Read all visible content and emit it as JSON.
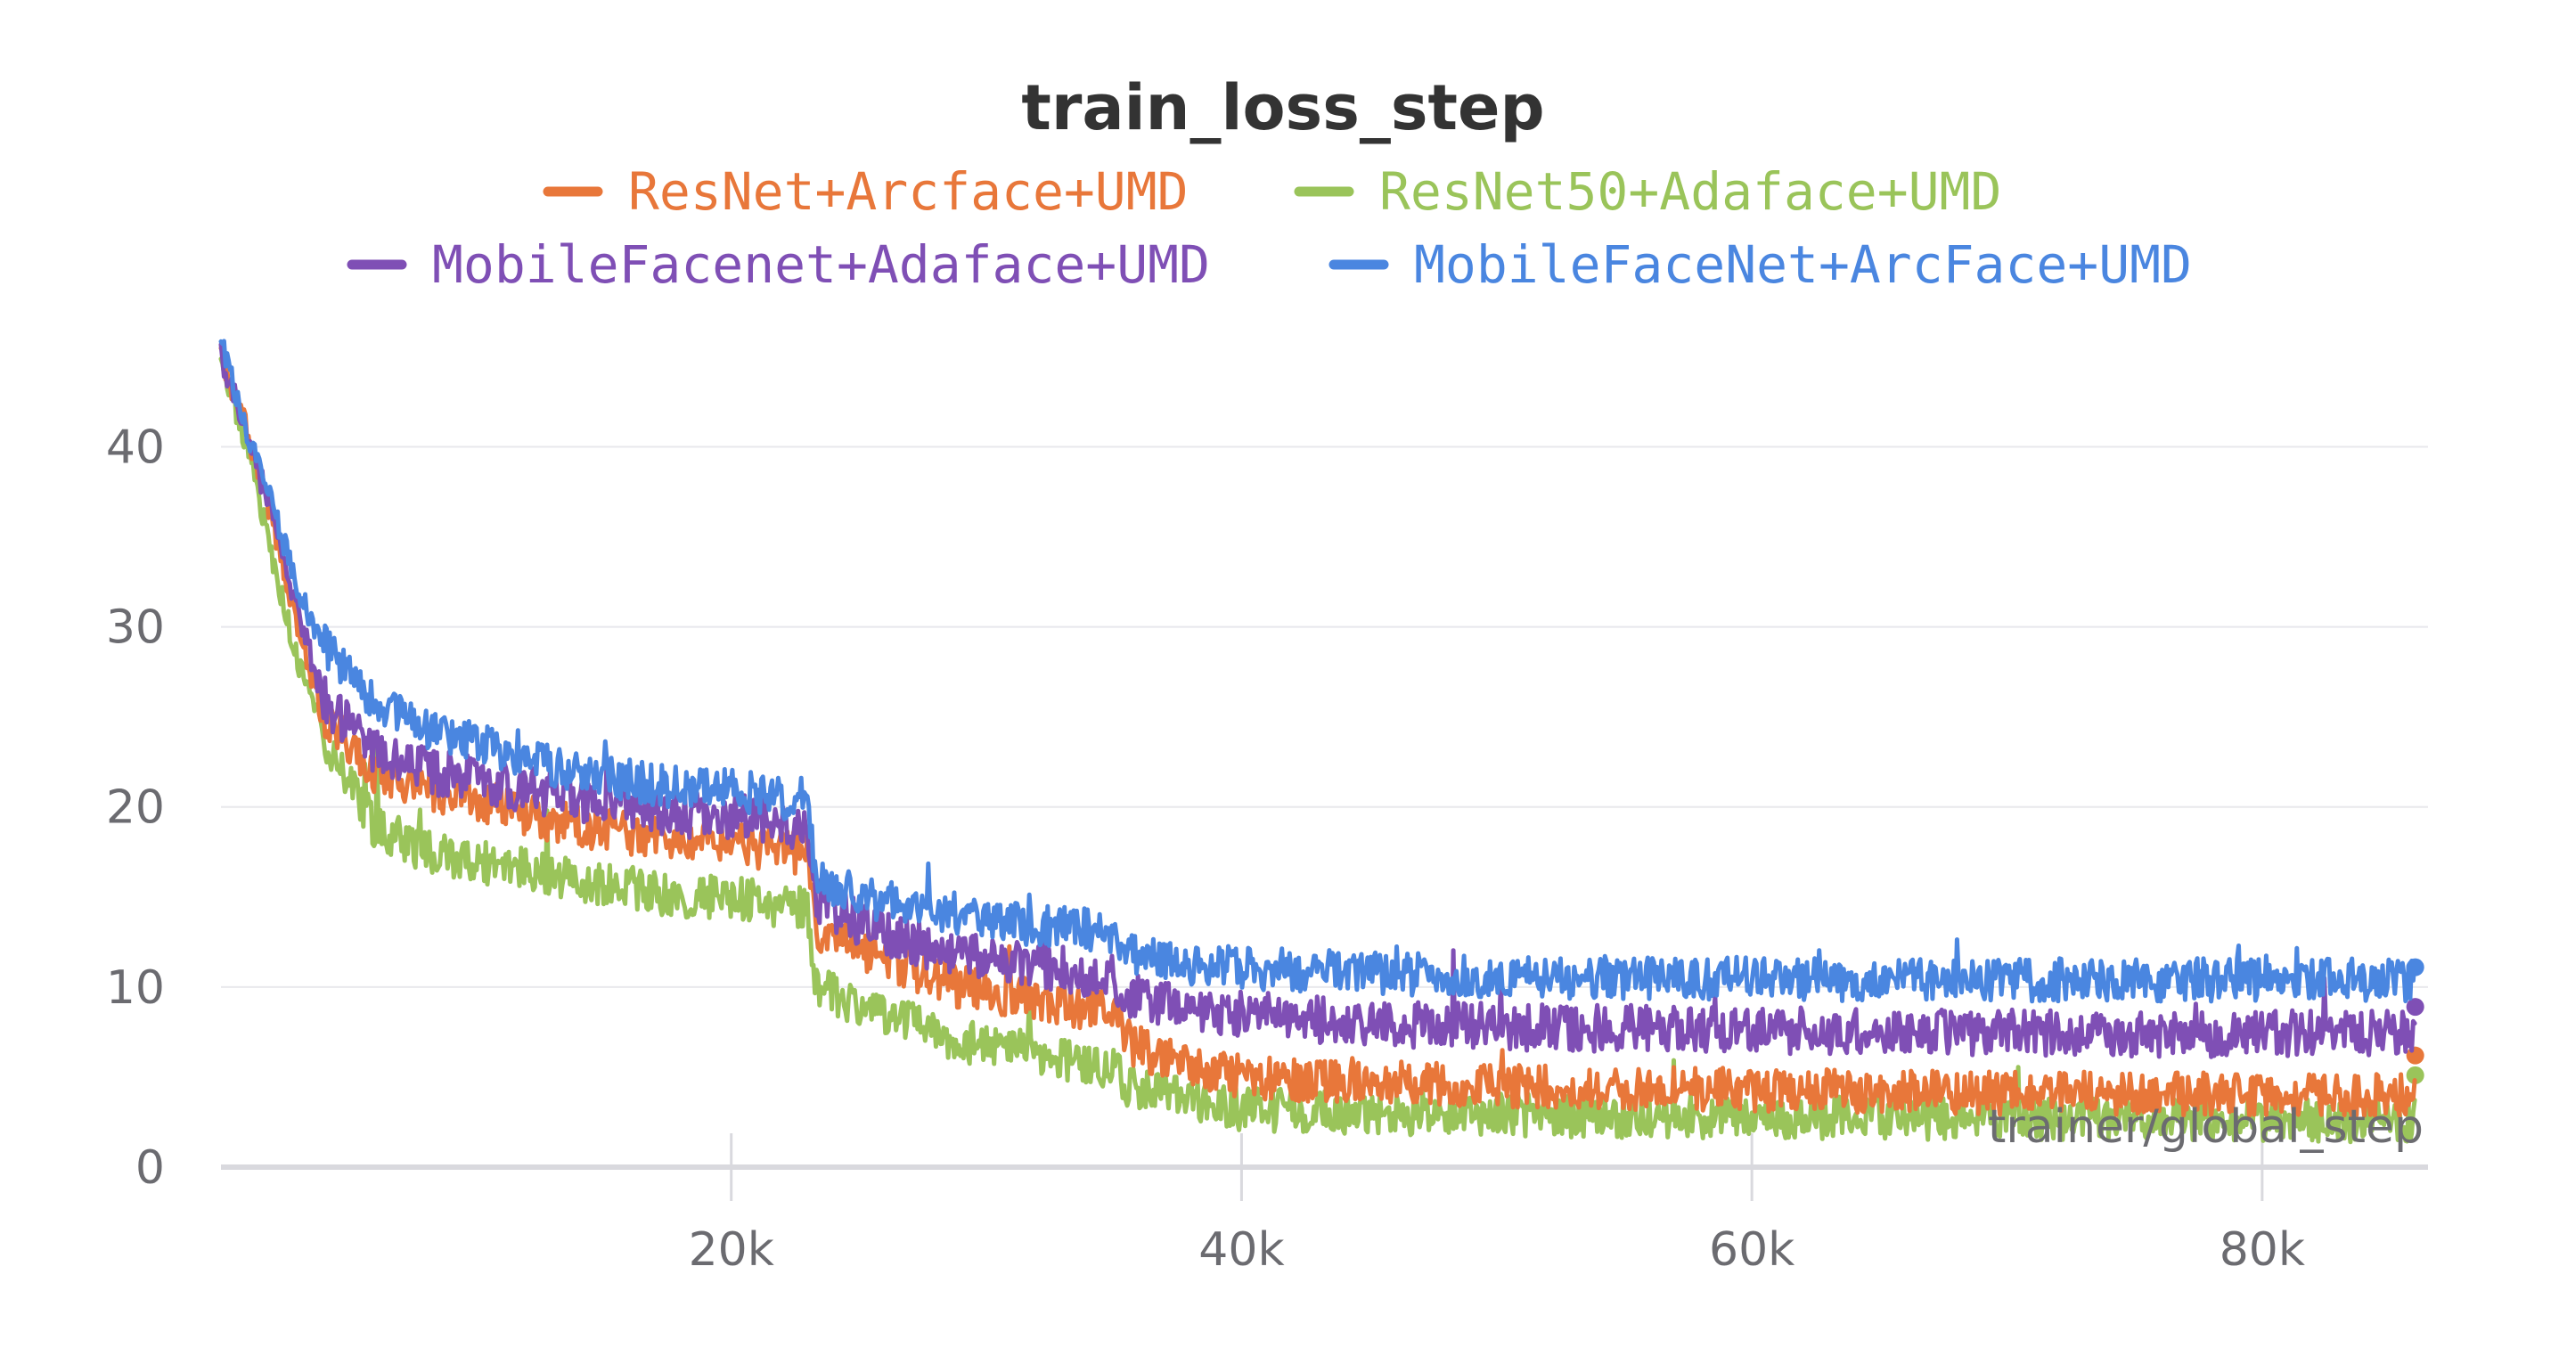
{
  "chart_data": {
    "type": "line",
    "title": "train_loss_step",
    "xlabel": "trainer/global_step",
    "ylabel": "",
    "xlim": [
      0,
      86500
    ],
    "ylim": [
      0,
      47
    ],
    "x_ticks": [
      20000,
      40000,
      60000,
      80000
    ],
    "x_tick_labels": [
      "20k",
      "40k",
      "60k",
      "80k"
    ],
    "y_ticks": [
      0,
      10,
      20,
      30,
      40
    ],
    "y_tick_labels": [
      "0",
      "10",
      "20",
      "30",
      "40"
    ],
    "grid": true,
    "legend_position": "top-center",
    "series": [
      {
        "name": "ResNet+Arcface+UMD",
        "color": "#e8773a",
        "points": [
          [
            0,
            45
          ],
          [
            1000,
            41
          ],
          [
            2000,
            36
          ],
          [
            3000,
            30
          ],
          [
            4000,
            25
          ],
          [
            6000,
            22
          ],
          [
            8000,
            21
          ],
          [
            10000,
            20.5
          ],
          [
            12000,
            19.5
          ],
          [
            14000,
            19
          ],
          [
            16000,
            18.5
          ],
          [
            18000,
            18
          ],
          [
            20000,
            18
          ],
          [
            22000,
            17.5
          ],
          [
            23000,
            17.5
          ],
          [
            23300,
            13
          ],
          [
            25000,
            12
          ],
          [
            27000,
            11
          ],
          [
            29000,
            10
          ],
          [
            31000,
            9.5
          ],
          [
            33000,
            9
          ],
          [
            35000,
            8.5
          ],
          [
            35500,
            7
          ],
          [
            37000,
            6
          ],
          [
            40000,
            5
          ],
          [
            45000,
            4.7
          ],
          [
            50000,
            4.5
          ],
          [
            55000,
            4.4
          ],
          [
            60000,
            4.3
          ],
          [
            65000,
            4.2
          ],
          [
            70000,
            4.1
          ],
          [
            75000,
            4.1
          ],
          [
            80000,
            4.0
          ],
          [
            86000,
            4.0
          ]
        ],
        "last_value": 6.2,
        "noise": 1.2
      },
      {
        "name": "ResNet50+Adaface+UMD",
        "color": "#9ac45a",
        "points": [
          [
            0,
            45
          ],
          [
            1000,
            40
          ],
          [
            2000,
            34
          ],
          [
            3000,
            28
          ],
          [
            4000,
            24
          ],
          [
            6000,
            19
          ],
          [
            8000,
            17.5
          ],
          [
            10000,
            17
          ],
          [
            12000,
            16.5
          ],
          [
            14000,
            16
          ],
          [
            16000,
            15.5
          ],
          [
            18000,
            15
          ],
          [
            20000,
            15
          ],
          [
            22000,
            14.5
          ],
          [
            23000,
            14.5
          ],
          [
            23300,
            10
          ],
          [
            25000,
            9
          ],
          [
            27000,
            8
          ],
          [
            29000,
            7
          ],
          [
            31000,
            6.5
          ],
          [
            33000,
            6
          ],
          [
            35000,
            5.5
          ],
          [
            35500,
            4.5
          ],
          [
            37000,
            4
          ],
          [
            40000,
            3.2
          ],
          [
            45000,
            3.0
          ],
          [
            50000,
            2.9
          ],
          [
            55000,
            2.8
          ],
          [
            60000,
            2.8
          ],
          [
            65000,
            2.7
          ],
          [
            70000,
            2.7
          ],
          [
            75000,
            2.7
          ],
          [
            80000,
            2.6
          ],
          [
            86000,
            2.6
          ]
        ],
        "last_value": 5.1,
        "noise": 1.2
      },
      {
        "name": "MobileFacenet+Adaface+UMD",
        "color": "#7f4fb5",
        "points": [
          [
            0,
            45
          ],
          [
            1000,
            41
          ],
          [
            2000,
            36
          ],
          [
            3000,
            31
          ],
          [
            4000,
            26
          ],
          [
            6000,
            23
          ],
          [
            8000,
            22
          ],
          [
            10000,
            21.5
          ],
          [
            12000,
            21
          ],
          [
            14000,
            20.5
          ],
          [
            16000,
            20
          ],
          [
            18000,
            19.5
          ],
          [
            20000,
            19.5
          ],
          [
            22000,
            19
          ],
          [
            23000,
            19
          ],
          [
            23300,
            15
          ],
          [
            25000,
            13.5
          ],
          [
            27000,
            12.5
          ],
          [
            29000,
            12
          ],
          [
            31000,
            11.5
          ],
          [
            33000,
            11
          ],
          [
            35000,
            10.5
          ],
          [
            35500,
            9.5
          ],
          [
            37000,
            9
          ],
          [
            40000,
            8.5
          ],
          [
            45000,
            8
          ],
          [
            50000,
            7.8
          ],
          [
            55000,
            7.7
          ],
          [
            60000,
            7.6
          ],
          [
            65000,
            7.5
          ],
          [
            70000,
            7.5
          ],
          [
            75000,
            7.4
          ],
          [
            80000,
            7.4
          ],
          [
            86000,
            7.4
          ]
        ],
        "last_value": 8.9,
        "noise": 1.3
      },
      {
        "name": "MobileFaceNet+ArcFace+UMD",
        "color": "#4a86e0",
        "points": [
          [
            0,
            46
          ],
          [
            1000,
            41
          ],
          [
            2000,
            37
          ],
          [
            3000,
            32
          ],
          [
            4000,
            29
          ],
          [
            6000,
            26
          ],
          [
            8000,
            24.5
          ],
          [
            10000,
            23.5
          ],
          [
            12000,
            22.5
          ],
          [
            14000,
            22
          ],
          [
            16000,
            21.5
          ],
          [
            18000,
            21
          ],
          [
            20000,
            21
          ],
          [
            22000,
            20.5
          ],
          [
            23000,
            20.5
          ],
          [
            23300,
            16
          ],
          [
            25000,
            15
          ],
          [
            27000,
            14.5
          ],
          [
            29000,
            14
          ],
          [
            31000,
            13.5
          ],
          [
            33000,
            13.5
          ],
          [
            35000,
            13
          ],
          [
            35500,
            12
          ],
          [
            37000,
            11.5
          ],
          [
            40000,
            11
          ],
          [
            45000,
            10.8
          ],
          [
            50000,
            10.6
          ],
          [
            55000,
            10.5
          ],
          [
            60000,
            10.5
          ],
          [
            65000,
            10.4
          ],
          [
            70000,
            10.4
          ],
          [
            75000,
            10.4
          ],
          [
            80000,
            10.4
          ],
          [
            86000,
            10.4
          ]
        ],
        "last_value": 11.1,
        "noise": 1.2
      }
    ]
  }
}
